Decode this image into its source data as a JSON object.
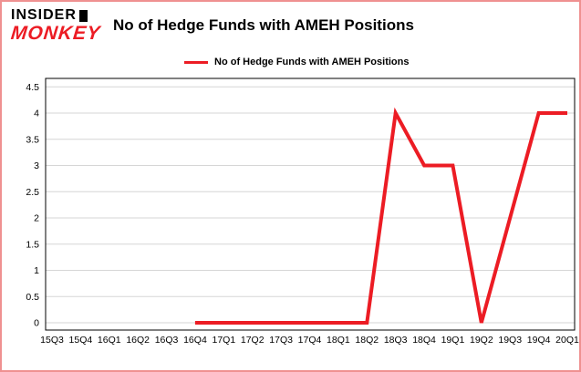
{
  "logo": {
    "line1": "INSIDER",
    "line2": "MONKEY"
  },
  "header": {
    "title": "No of Hedge Funds with AMEH Positions"
  },
  "legend": {
    "label": "No of Hedge Funds with AMEH Positions"
  },
  "colors": {
    "accent": "#ec1c24",
    "frame_border": "#ef9191",
    "gridline": "#d6d6d6",
    "plot_border": "#000000",
    "background": "#ffffff"
  },
  "chart_data": {
    "type": "line",
    "title": "No of Hedge Funds with AMEH Positions",
    "xlabel": "",
    "ylabel": "",
    "categories": [
      "15Q3",
      "15Q4",
      "16Q1",
      "16Q2",
      "16Q3",
      "16Q4",
      "17Q1",
      "17Q2",
      "17Q3",
      "17Q4",
      "18Q1",
      "18Q2",
      "18Q3",
      "18Q4",
      "19Q1",
      "19Q2",
      "19Q3",
      "19Q4",
      "20Q1"
    ],
    "series": [
      {
        "name": "No of Hedge Funds with AMEH Positions",
        "values": [
          null,
          null,
          null,
          null,
          null,
          0,
          0,
          0,
          0,
          0,
          0,
          0,
          4,
          3,
          3,
          0,
          2,
          4,
          4
        ]
      }
    ],
    "ylim": [
      0,
      4.5
    ],
    "ytick_step": 0.5,
    "ytick_labels": [
      "0",
      "0.5",
      "1",
      "1.5",
      "2",
      "2.5",
      "3",
      "3.5",
      "4",
      "4.5"
    ],
    "grid": true,
    "legend_position": "top",
    "line_width": 4
  }
}
